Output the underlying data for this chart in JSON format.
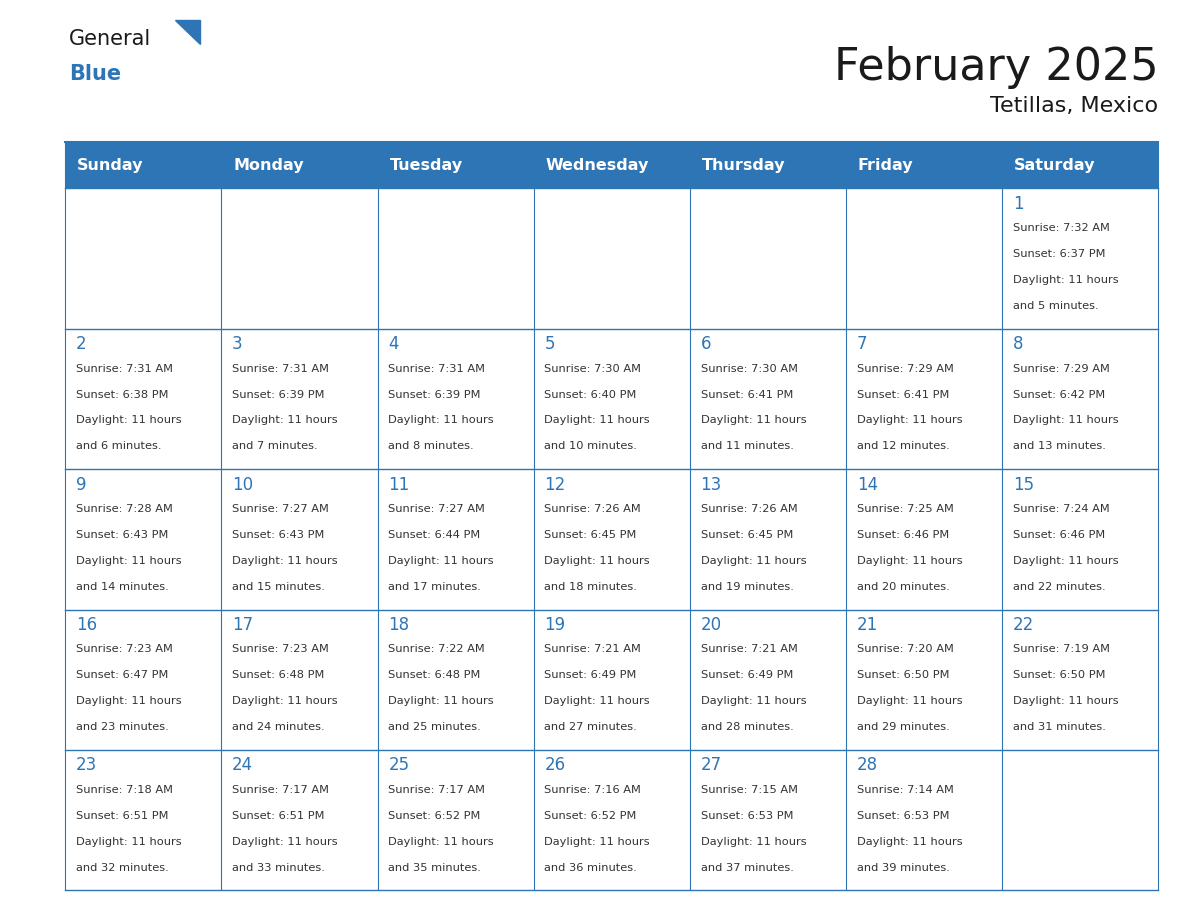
{
  "title": "February 2025",
  "subtitle": "Tetillas, Mexico",
  "header_bg": "#2E75B6",
  "header_text_color": "#FFFFFF",
  "cell_bg": "#FFFFFF",
  "border_color": "#2E75B6",
  "days_of_week": [
    "Sunday",
    "Monday",
    "Tuesday",
    "Wednesday",
    "Thursday",
    "Friday",
    "Saturday"
  ],
  "title_color": "#1a1a1a",
  "subtitle_color": "#1a1a1a",
  "day_number_color": "#2E75B6",
  "cell_text_color": "#333333",
  "logo_blue_color": "#2E75B6",
  "calendar": [
    [
      null,
      null,
      null,
      null,
      null,
      null,
      {
        "day": 1,
        "lines": [
          "Sunrise: 7:32 AM",
          "Sunset: 6:37 PM",
          "Daylight: 11 hours",
          "and 5 minutes."
        ]
      }
    ],
    [
      {
        "day": 2,
        "lines": [
          "Sunrise: 7:31 AM",
          "Sunset: 6:38 PM",
          "Daylight: 11 hours",
          "and 6 minutes."
        ]
      },
      {
        "day": 3,
        "lines": [
          "Sunrise: 7:31 AM",
          "Sunset: 6:39 PM",
          "Daylight: 11 hours",
          "and 7 minutes."
        ]
      },
      {
        "day": 4,
        "lines": [
          "Sunrise: 7:31 AM",
          "Sunset: 6:39 PM",
          "Daylight: 11 hours",
          "and 8 minutes."
        ]
      },
      {
        "day": 5,
        "lines": [
          "Sunrise: 7:30 AM",
          "Sunset: 6:40 PM",
          "Daylight: 11 hours",
          "and 10 minutes."
        ]
      },
      {
        "day": 6,
        "lines": [
          "Sunrise: 7:30 AM",
          "Sunset: 6:41 PM",
          "Daylight: 11 hours",
          "and 11 minutes."
        ]
      },
      {
        "day": 7,
        "lines": [
          "Sunrise: 7:29 AM",
          "Sunset: 6:41 PM",
          "Daylight: 11 hours",
          "and 12 minutes."
        ]
      },
      {
        "day": 8,
        "lines": [
          "Sunrise: 7:29 AM",
          "Sunset: 6:42 PM",
          "Daylight: 11 hours",
          "and 13 minutes."
        ]
      }
    ],
    [
      {
        "day": 9,
        "lines": [
          "Sunrise: 7:28 AM",
          "Sunset: 6:43 PM",
          "Daylight: 11 hours",
          "and 14 minutes."
        ]
      },
      {
        "day": 10,
        "lines": [
          "Sunrise: 7:27 AM",
          "Sunset: 6:43 PM",
          "Daylight: 11 hours",
          "and 15 minutes."
        ]
      },
      {
        "day": 11,
        "lines": [
          "Sunrise: 7:27 AM",
          "Sunset: 6:44 PM",
          "Daylight: 11 hours",
          "and 17 minutes."
        ]
      },
      {
        "day": 12,
        "lines": [
          "Sunrise: 7:26 AM",
          "Sunset: 6:45 PM",
          "Daylight: 11 hours",
          "and 18 minutes."
        ]
      },
      {
        "day": 13,
        "lines": [
          "Sunrise: 7:26 AM",
          "Sunset: 6:45 PM",
          "Daylight: 11 hours",
          "and 19 minutes."
        ]
      },
      {
        "day": 14,
        "lines": [
          "Sunrise: 7:25 AM",
          "Sunset: 6:46 PM",
          "Daylight: 11 hours",
          "and 20 minutes."
        ]
      },
      {
        "day": 15,
        "lines": [
          "Sunrise: 7:24 AM",
          "Sunset: 6:46 PM",
          "Daylight: 11 hours",
          "and 22 minutes."
        ]
      }
    ],
    [
      {
        "day": 16,
        "lines": [
          "Sunrise: 7:23 AM",
          "Sunset: 6:47 PM",
          "Daylight: 11 hours",
          "and 23 minutes."
        ]
      },
      {
        "day": 17,
        "lines": [
          "Sunrise: 7:23 AM",
          "Sunset: 6:48 PM",
          "Daylight: 11 hours",
          "and 24 minutes."
        ]
      },
      {
        "day": 18,
        "lines": [
          "Sunrise: 7:22 AM",
          "Sunset: 6:48 PM",
          "Daylight: 11 hours",
          "and 25 minutes."
        ]
      },
      {
        "day": 19,
        "lines": [
          "Sunrise: 7:21 AM",
          "Sunset: 6:49 PM",
          "Daylight: 11 hours",
          "and 27 minutes."
        ]
      },
      {
        "day": 20,
        "lines": [
          "Sunrise: 7:21 AM",
          "Sunset: 6:49 PM",
          "Daylight: 11 hours",
          "and 28 minutes."
        ]
      },
      {
        "day": 21,
        "lines": [
          "Sunrise: 7:20 AM",
          "Sunset: 6:50 PM",
          "Daylight: 11 hours",
          "and 29 minutes."
        ]
      },
      {
        "day": 22,
        "lines": [
          "Sunrise: 7:19 AM",
          "Sunset: 6:50 PM",
          "Daylight: 11 hours",
          "and 31 minutes."
        ]
      }
    ],
    [
      {
        "day": 23,
        "lines": [
          "Sunrise: 7:18 AM",
          "Sunset: 6:51 PM",
          "Daylight: 11 hours",
          "and 32 minutes."
        ]
      },
      {
        "day": 24,
        "lines": [
          "Sunrise: 7:17 AM",
          "Sunset: 6:51 PM",
          "Daylight: 11 hours",
          "and 33 minutes."
        ]
      },
      {
        "day": 25,
        "lines": [
          "Sunrise: 7:17 AM",
          "Sunset: 6:52 PM",
          "Daylight: 11 hours",
          "and 35 minutes."
        ]
      },
      {
        "day": 26,
        "lines": [
          "Sunrise: 7:16 AM",
          "Sunset: 6:52 PM",
          "Daylight: 11 hours",
          "and 36 minutes."
        ]
      },
      {
        "day": 27,
        "lines": [
          "Sunrise: 7:15 AM",
          "Sunset: 6:53 PM",
          "Daylight: 11 hours",
          "and 37 minutes."
        ]
      },
      {
        "day": 28,
        "lines": [
          "Sunrise: 7:14 AM",
          "Sunset: 6:53 PM",
          "Daylight: 11 hours",
          "and 39 minutes."
        ]
      },
      null
    ]
  ]
}
